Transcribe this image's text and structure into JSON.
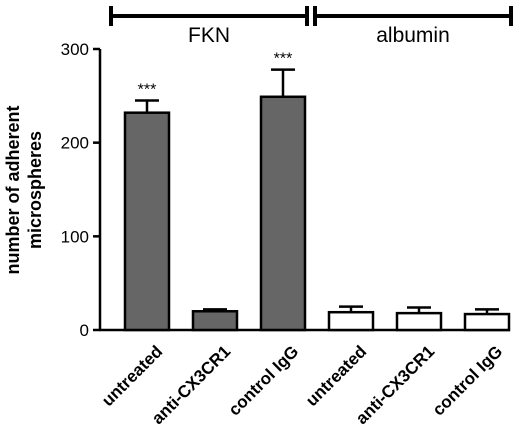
{
  "chart_data": {
    "type": "bar",
    "ylabel_lines": [
      "number of adherent",
      "microspheres"
    ],
    "xlabel": "",
    "ylim": [
      0,
      300
    ],
    "yticks": [
      0,
      100,
      200,
      300
    ],
    "categories": [
      "untreated",
      "anti-CX3CR1",
      "control IgG",
      "untreated",
      "anti-CX3CR1",
      "control IgG"
    ],
    "values": [
      232,
      20,
      249,
      19,
      18,
      17
    ],
    "errors": [
      13,
      2,
      29,
      6,
      6,
      5
    ],
    "fill_colors": [
      "#666666",
      "#666666",
      "#666666",
      "#ffffff",
      "#ffffff",
      "#ffffff"
    ],
    "significance": [
      "***",
      "",
      "***",
      "",
      "",
      ""
    ],
    "groups": [
      {
        "label": "FKN",
        "start": 0,
        "end": 2
      },
      {
        "label": "albumin",
        "start": 3,
        "end": 5
      }
    ],
    "grid": false,
    "legend": "none"
  }
}
